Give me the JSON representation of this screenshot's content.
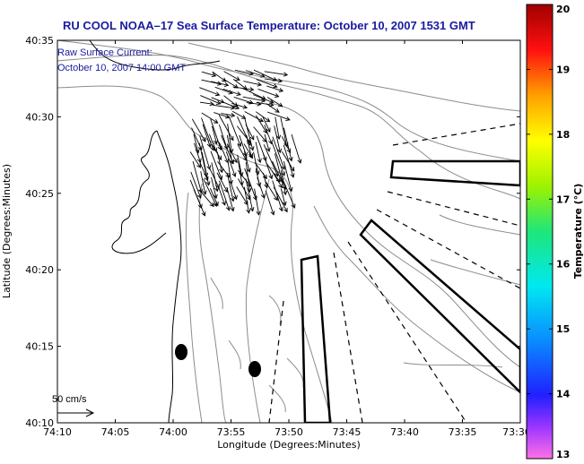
{
  "chart_data": {
    "type": "map",
    "title": "RU COOL  NOAA–17  Sea Surface Temperature:  October 10, 2007 1531 GMT",
    "annotation": {
      "line1": "Raw Surface Current:",
      "line2": "October 10, 2007 14:00 GMT"
    },
    "scale_label": "50 cm/s",
    "xlabel": "Longitude (Degrees:Minutes)",
    "ylabel": "Latitude (Degrees:Minutes)",
    "x_ticks": [
      "74:10",
      "74:05",
      "74:00",
      "73:55",
      "73:50",
      "73:45",
      "73:40",
      "73:35",
      "73:30"
    ],
    "y_ticks": [
      "40:10",
      "40:15",
      "40:20",
      "40:25",
      "40:30",
      "40:35"
    ],
    "xlim_minutes_west": [
      10,
      -30
    ],
    "colorbar": {
      "label": "Temperature (°C)",
      "range": [
        13,
        20
      ],
      "ticks": [
        "13",
        "14",
        "15",
        "16",
        "17",
        "18",
        "19",
        "20"
      ]
    },
    "colors": {
      "title": "#1a1aa0",
      "annotation": "#1a1aa0",
      "land_contours": "#000000",
      "bathymetry": "#8c8c8c"
    }
  }
}
